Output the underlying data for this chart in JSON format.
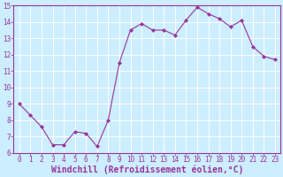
{
  "x": [
    0,
    1,
    2,
    3,
    4,
    5,
    6,
    7,
    8,
    9,
    10,
    11,
    12,
    13,
    14,
    15,
    16,
    17,
    18,
    19,
    20,
    21,
    22,
    23
  ],
  "y": [
    9.0,
    8.3,
    7.6,
    6.5,
    6.5,
    7.3,
    7.2,
    6.4,
    8.0,
    11.5,
    13.5,
    13.9,
    13.5,
    13.5,
    13.2,
    14.1,
    14.9,
    14.5,
    14.2,
    13.7,
    14.1,
    12.5,
    11.9,
    11.7
  ],
  "line_color": "#993399",
  "marker": "D",
  "marker_size": 2.0,
  "bg_color": "#cceeff",
  "grid_color": "#ffffff",
  "xlabel": "Windchill (Refroidissement éolien,°C)",
  "ylim": [
    6,
    15
  ],
  "xlim_min": -0.5,
  "xlim_max": 23.5,
  "yticks": [
    6,
    7,
    8,
    9,
    10,
    11,
    12,
    13,
    14,
    15
  ],
  "xticks": [
    0,
    1,
    2,
    3,
    4,
    5,
    6,
    7,
    8,
    9,
    10,
    11,
    12,
    13,
    14,
    15,
    16,
    17,
    18,
    19,
    20,
    21,
    22,
    23
  ],
  "tick_fontsize": 5.5,
  "xlabel_fontsize": 7.0,
  "title_color": "#993399",
  "spine_color": "#993399"
}
